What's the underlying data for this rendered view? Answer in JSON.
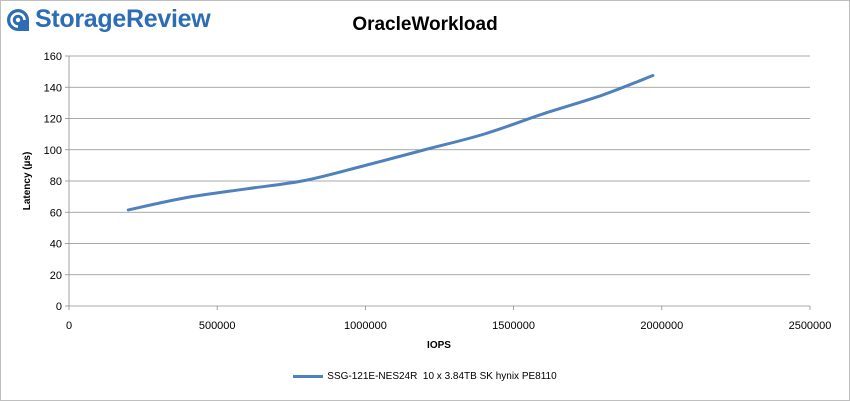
{
  "logo": {
    "text": "StorageReview"
  },
  "chart_data": {
    "type": "line",
    "title": "OracleWorkload",
    "xlabel": "IOPS",
    "ylabel": "Latency (µs)",
    "xlim": [
      0,
      2500000
    ],
    "ylim": [
      0,
      160
    ],
    "x_ticks": [
      "0",
      "500000",
      "1000000",
      "1500000",
      "2000000",
      "2500000"
    ],
    "y_ticks": [
      "0",
      "20",
      "40",
      "60",
      "80",
      "100",
      "120",
      "140",
      "160"
    ],
    "grid": "horizontal",
    "legend_position": "bottom",
    "series": [
      {
        "name": "SSG-121E-NES24R  10 x 3.84TB SK hynix PE8110",
        "color": "#4f81bd",
        "x": [
          200000,
          400000,
          600000,
          800000,
          1000000,
          1200000,
          1400000,
          1600000,
          1800000,
          1970000
        ],
        "y": [
          61.5,
          69.5,
          75,
          80.5,
          90,
          100,
          110,
          123,
          135,
          147.5
        ]
      }
    ]
  }
}
